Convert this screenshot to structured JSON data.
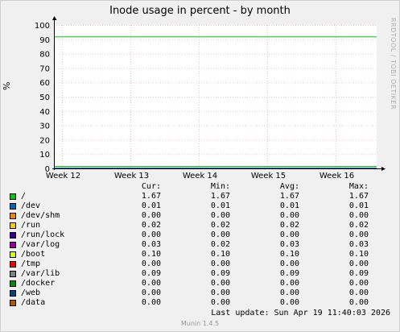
{
  "chart_data": {
    "type": "line",
    "title": "Inode usage in percent - by month",
    "ylabel": "%",
    "ylim": [
      0,
      100
    ],
    "yticks": [
      0,
      10,
      20,
      30,
      40,
      50,
      60,
      70,
      80,
      90,
      100
    ],
    "xticks": [
      "Week 12",
      "Week 13",
      "Week 14",
      "Week 15",
      "Week 16"
    ],
    "grid": true,
    "thresholds": [
      {
        "value": 92,
        "color": "#00cc00"
      }
    ],
    "series": [
      {
        "name": "/",
        "color": "#00cc00",
        "cur": "1.67",
        "min": "1.67",
        "avg": "1.67",
        "max": "1.67",
        "value": 1.67
      },
      {
        "name": "/dev",
        "color": "#0066b3",
        "cur": "0.01",
        "min": "0.01",
        "avg": "0.01",
        "max": "0.01",
        "value": 0.01
      },
      {
        "name": "/dev/shm",
        "color": "#ff8000",
        "cur": "0.00",
        "min": "0.00",
        "avg": "0.00",
        "max": "0.00",
        "value": 0.0
      },
      {
        "name": "/run",
        "color": "#ffcc00",
        "cur": "0.02",
        "min": "0.02",
        "avg": "0.02",
        "max": "0.02",
        "value": 0.02
      },
      {
        "name": "/run/lock",
        "color": "#330099",
        "cur": "0.00",
        "min": "0.00",
        "avg": "0.00",
        "max": "0.00",
        "value": 0.0
      },
      {
        "name": "/var/log",
        "color": "#990099",
        "cur": "0.03",
        "min": "0.02",
        "avg": "0.03",
        "max": "0.03",
        "value": 0.03
      },
      {
        "name": "/boot",
        "color": "#ccff00",
        "cur": "0.10",
        "min": "0.10",
        "avg": "0.10",
        "max": "0.10",
        "value": 0.1
      },
      {
        "name": "/tmp",
        "color": "#ff0000",
        "cur": "0.00",
        "min": "0.00",
        "avg": "0.00",
        "max": "0.00",
        "value": 0.0
      },
      {
        "name": "/var/lib",
        "color": "#808080",
        "cur": "0.09",
        "min": "0.09",
        "avg": "0.09",
        "max": "0.09",
        "value": 0.09
      },
      {
        "name": "/docker",
        "color": "#008f00",
        "cur": "0.00",
        "min": "0.00",
        "avg": "0.00",
        "max": "0.00",
        "value": 0.0
      },
      {
        "name": "/web",
        "color": "#00487d",
        "cur": "0.00",
        "min": "0.00",
        "avg": "0.00",
        "max": "0.00",
        "value": 0.0
      },
      {
        "name": "/data",
        "color": "#b35a00",
        "cur": "0.00",
        "min": "0.00",
        "avg": "0.00",
        "max": "0.00",
        "value": 0.0
      }
    ]
  },
  "legend": {
    "cur": "Cur:",
    "min": "Min:",
    "avg": "Avg:",
    "max": "Max:"
  },
  "last_update": "Last update:  Sun Apr 19 11:40:03 2026",
  "watermark": "RRDTOOL / TOBI OETIKER",
  "footer": "Munin 1.4.5"
}
